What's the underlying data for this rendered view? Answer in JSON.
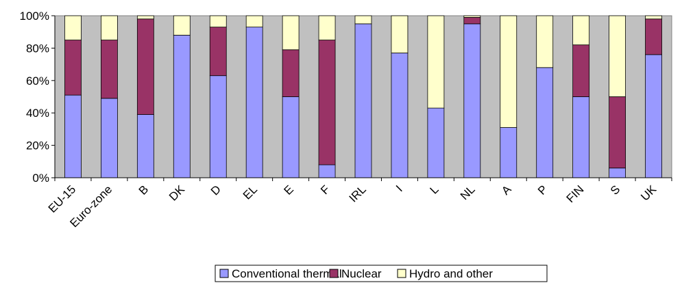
{
  "chart_data": {
    "type": "bar",
    "stacked": true,
    "normalized": true,
    "categories": [
      "EU-15",
      "Euro-zone",
      "B",
      "DK",
      "D",
      "EL",
      "E",
      "F",
      "IRL",
      "I",
      "L",
      "NL",
      "A",
      "P",
      "FIN",
      "S",
      "UK"
    ],
    "series": [
      {
        "name": "Conventional thermal",
        "color": "#9999ff",
        "values": [
          51,
          49,
          39,
          88,
          63,
          93,
          50,
          8,
          95,
          77,
          43,
          95,
          31,
          68,
          50,
          6,
          76
        ]
      },
      {
        "name": "Nuclear",
        "color": "#993366",
        "values": [
          34,
          36,
          59,
          0,
          30,
          0,
          29,
          77,
          0,
          0,
          0,
          4,
          0,
          0,
          32,
          44,
          22
        ]
      },
      {
        "name": "Hydro and other",
        "color": "#ffffcc",
        "values": [
          15,
          15,
          2,
          12,
          7,
          7,
          21,
          15,
          5,
          23,
          57,
          1,
          69,
          32,
          18,
          50,
          2
        ]
      }
    ],
    "ylim": [
      0,
      100
    ],
    "yticks": [
      "0%",
      "20%",
      "40%",
      "60%",
      "80%",
      "100%"
    ],
    "grid": false,
    "legend_position": "bottom",
    "plot_background": "#c0c0c0",
    "title": "",
    "xlabel": "",
    "ylabel": ""
  }
}
